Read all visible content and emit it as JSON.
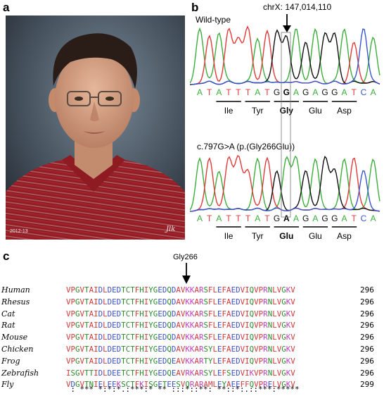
{
  "panels": {
    "a": "a",
    "b": "b",
    "c": "c"
  },
  "photo": {
    "caption": "2012-13",
    "signature": "Jlk"
  },
  "chromatogram": {
    "wildtype_label": "Wild-type",
    "position_label": "chrX: 147,014,110",
    "mutant_label": "c.797G>A (p.(Gly266Glu))",
    "wildtype_bases": [
      "A",
      "T",
      "A",
      "T",
      "T",
      "T",
      "A",
      "T",
      "G",
      "G",
      "A",
      "G",
      "A",
      "G",
      "G",
      "A",
      "T",
      "C",
      "A"
    ],
    "mutant_bases": [
      "A",
      "T",
      "A",
      "T",
      "T",
      "T",
      "A",
      "T",
      "G",
      "A",
      "A",
      "G",
      "A",
      "G",
      "G",
      "A",
      "T",
      "C",
      "A"
    ],
    "wildtype_codons": [
      "Ile",
      "Tyr",
      "Gly",
      "Glu",
      "Asp"
    ],
    "mutant_codons": [
      "Ile",
      "Tyr",
      "Glu",
      "Glu",
      "Asp"
    ],
    "highlight_codon_index": 2,
    "highlight_base_index": 9,
    "base_colors": {
      "A": "#3bae3b",
      "T": "#e03a3a",
      "G": "#111111",
      "C": "#3a55d0"
    }
  },
  "alignment": {
    "marker_label": "Gly266",
    "rows": [
      {
        "species": "Human",
        "seq": "VPGVTAIDLDEDTCTFHIYGEDQDAVKKARSFLEFAEDVIQVPRNLVGKV",
        "end": "296"
      },
      {
        "species": "Rhesus",
        "seq": "VPGVTAIDLDEDTCTFHIYGEDQDAVKKARSFLEFAEDVIQVPRNLVGKV",
        "end": "296"
      },
      {
        "species": "Cat",
        "seq": "VPGVTAIDLDEDTCTFHIYGEDQDAVKKARSFLEFAEDVIQVPRNLVGKV",
        "end": "296"
      },
      {
        "species": "Rat",
        "seq": "VPGVTAIDLDEDTCTFHIYGEDQDAVKKARSFLEFAEDVIQVPRNLVGKV",
        "end": "296"
      },
      {
        "species": "Mouse",
        "seq": "VPGVTAIDLDEDTCTFHIYGEDQDAVKKARSFLEFAEDVIQVPRNLVGKV",
        "end": "296"
      },
      {
        "species": "Chicken",
        "seq": "VPGVTAIDLDEDTCTFHIYGEDQDAVKKARSYLEFAEDVIQVPRNLVGKV",
        "end": "296"
      },
      {
        "species": "Frog",
        "seq": "VPGVTAIDLDEDTCTFHIYGEDQEAVKKARTYLEFAEDVIQVPRNLVGKV",
        "end": "296"
      },
      {
        "species": "Zebrafish",
        "seq": "ISGVTTIDLDEETCTFHIYGEDQEAVRKARSYLEFSEDVIKVPRNLVGKV",
        "end": "296"
      },
      {
        "species": "Fly",
        "seq": "VDGVTNIELEEKSCTFKISGETEESVQRARAMLEYAEEFFQVPRELVGKV",
        "end": "299"
      }
    ],
    "consensus": " : *** *:*:*.:***:* ** :::*::**: **::*:.::***:*****"
  }
}
